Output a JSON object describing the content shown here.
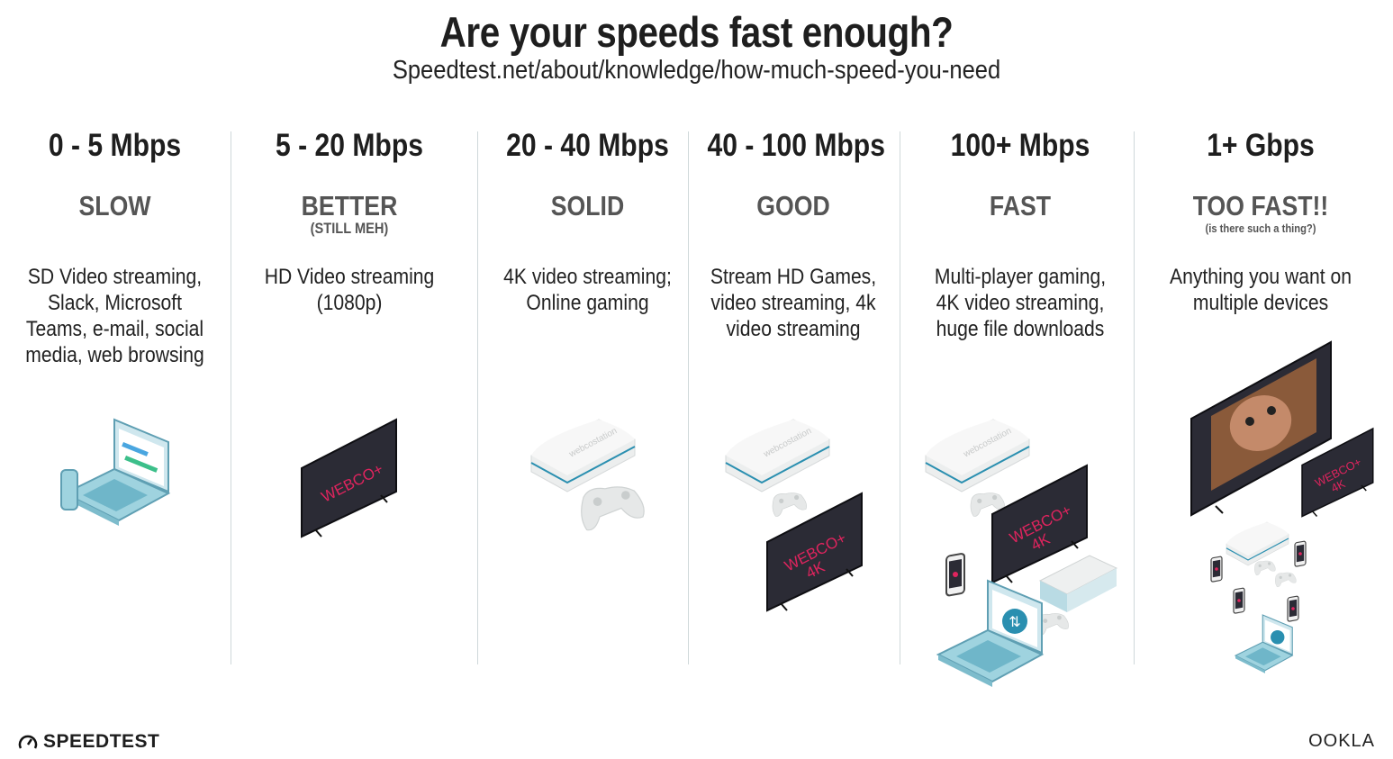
{
  "header": {
    "title": "Are your speeds fast enough?",
    "subtitle": "Speedtest.net/about/knowledge/how-much-speed-you-need"
  },
  "tiers": [
    {
      "speed": "0 - 5 Mbps",
      "label": "SLOW",
      "sublabel": "",
      "description": "SD Video streaming, Slack, Microsoft Teams, e-mail, social media, web browsing"
    },
    {
      "speed": "5 - 20 Mbps",
      "label": "BETTER",
      "sublabel": "(STILL MEH)",
      "description": "HD Video streaming (1080p)"
    },
    {
      "speed": "20 - 40 Mbps",
      "label": "SOLID",
      "sublabel": "",
      "description": "4K video streaming; Online gaming"
    },
    {
      "speed": "40 - 100 Mbps",
      "label": "GOOD",
      "sublabel": "",
      "description": "Stream HD Games, video streaming, 4k video streaming"
    },
    {
      "speed": "100+ Mbps",
      "label": "FAST",
      "sublabel": "",
      "description": "Multi-player gaming, 4K video streaming, huge file downloads"
    },
    {
      "speed": "1+ Gbps",
      "label": "TOO FAST!!",
      "sublabel": "(is there such a thing?)",
      "description": "Anything you want on multiple devices"
    }
  ],
  "devices": {
    "tv_brand": "WEBCO+",
    "tv_4k": "4K",
    "console_brand": "webcostation"
  },
  "footer": {
    "left_logo": "SPEEDTEST",
    "right_logo": "OOKLA"
  },
  "colors": {
    "accent_red": "#e0245e",
    "console_blue": "#2a8fb0",
    "laptop_teal": "#9fd3df",
    "tv_dark": "#2b2b35"
  }
}
